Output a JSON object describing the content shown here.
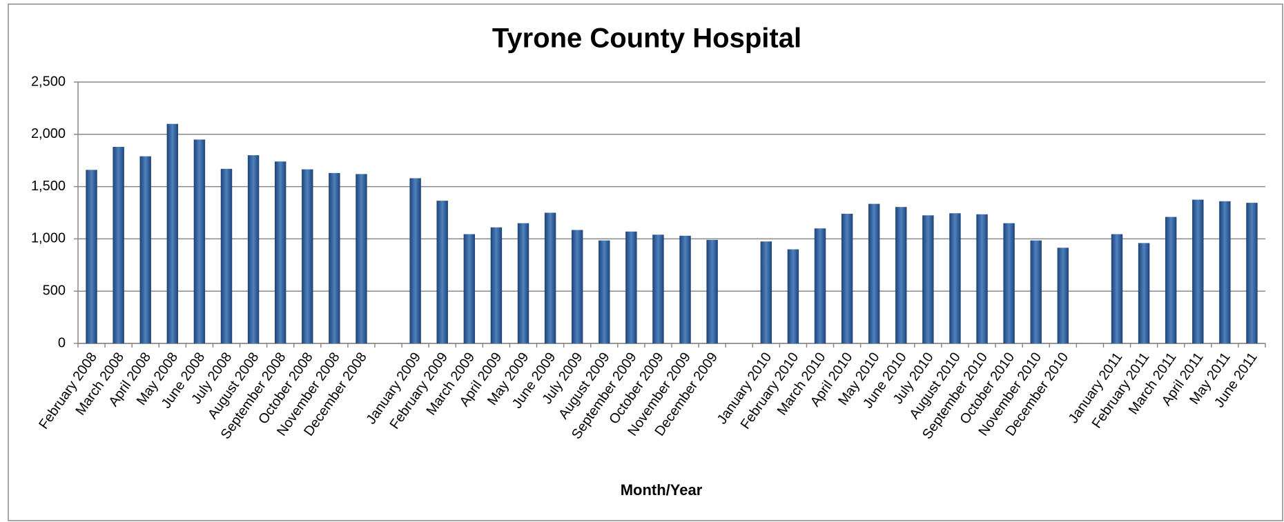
{
  "chart_data": {
    "type": "bar",
    "title": "Tyrone County Hospital",
    "x_label": "Month/Year",
    "color": "#4f81bd",
    "grid": true,
    "categories": [
      "February 2008",
      "March 2008",
      "April 2008",
      "May 2008",
      "June 2008",
      "July 2008",
      "August 2008",
      "September 2008",
      "October 2008",
      "November 2008",
      "December 2008",
      null,
      "January 2009",
      "February 2009",
      "March 2009",
      "April 2009",
      "May 2009",
      "June 2009",
      "July 2009",
      "August 2009",
      "September 2009",
      "October 2009",
      "November 2009",
      "December 2009",
      null,
      "January 2010",
      "February 2010",
      "March 2010",
      "April 2010",
      "May 2010",
      "June 2010",
      "July 2010",
      "August 2010",
      "September 2010",
      "October 2010",
      "November 2010",
      "December 2010",
      null,
      "January 2011",
      "February 2011",
      "March 2011",
      "April 2011",
      "May 2011",
      "June 2011"
    ],
    "values": [
      1660,
      1880,
      1790,
      2100,
      1950,
      1670,
      1800,
      1740,
      1665,
      1630,
      1620,
      null,
      1580,
      1365,
      1045,
      1110,
      1150,
      1250,
      1085,
      985,
      1070,
      1040,
      1030,
      990,
      null,
      975,
      900,
      1100,
      1240,
      1335,
      1305,
      1225,
      1245,
      1235,
      1150,
      985,
      915,
      null,
      1045,
      960,
      1210,
      1375,
      1360,
      1345
    ],
    "ylim": [
      0,
      2500
    ],
    "yticks": [
      0,
      500,
      {
        "value": 1000,
        "label": "1,000"
      },
      {
        "value": 1500,
        "label": "1,500"
      },
      {
        "value": 2000,
        "label": "2,000"
      },
      {
        "value": 2500,
        "label": "2,500"
      }
    ]
  }
}
